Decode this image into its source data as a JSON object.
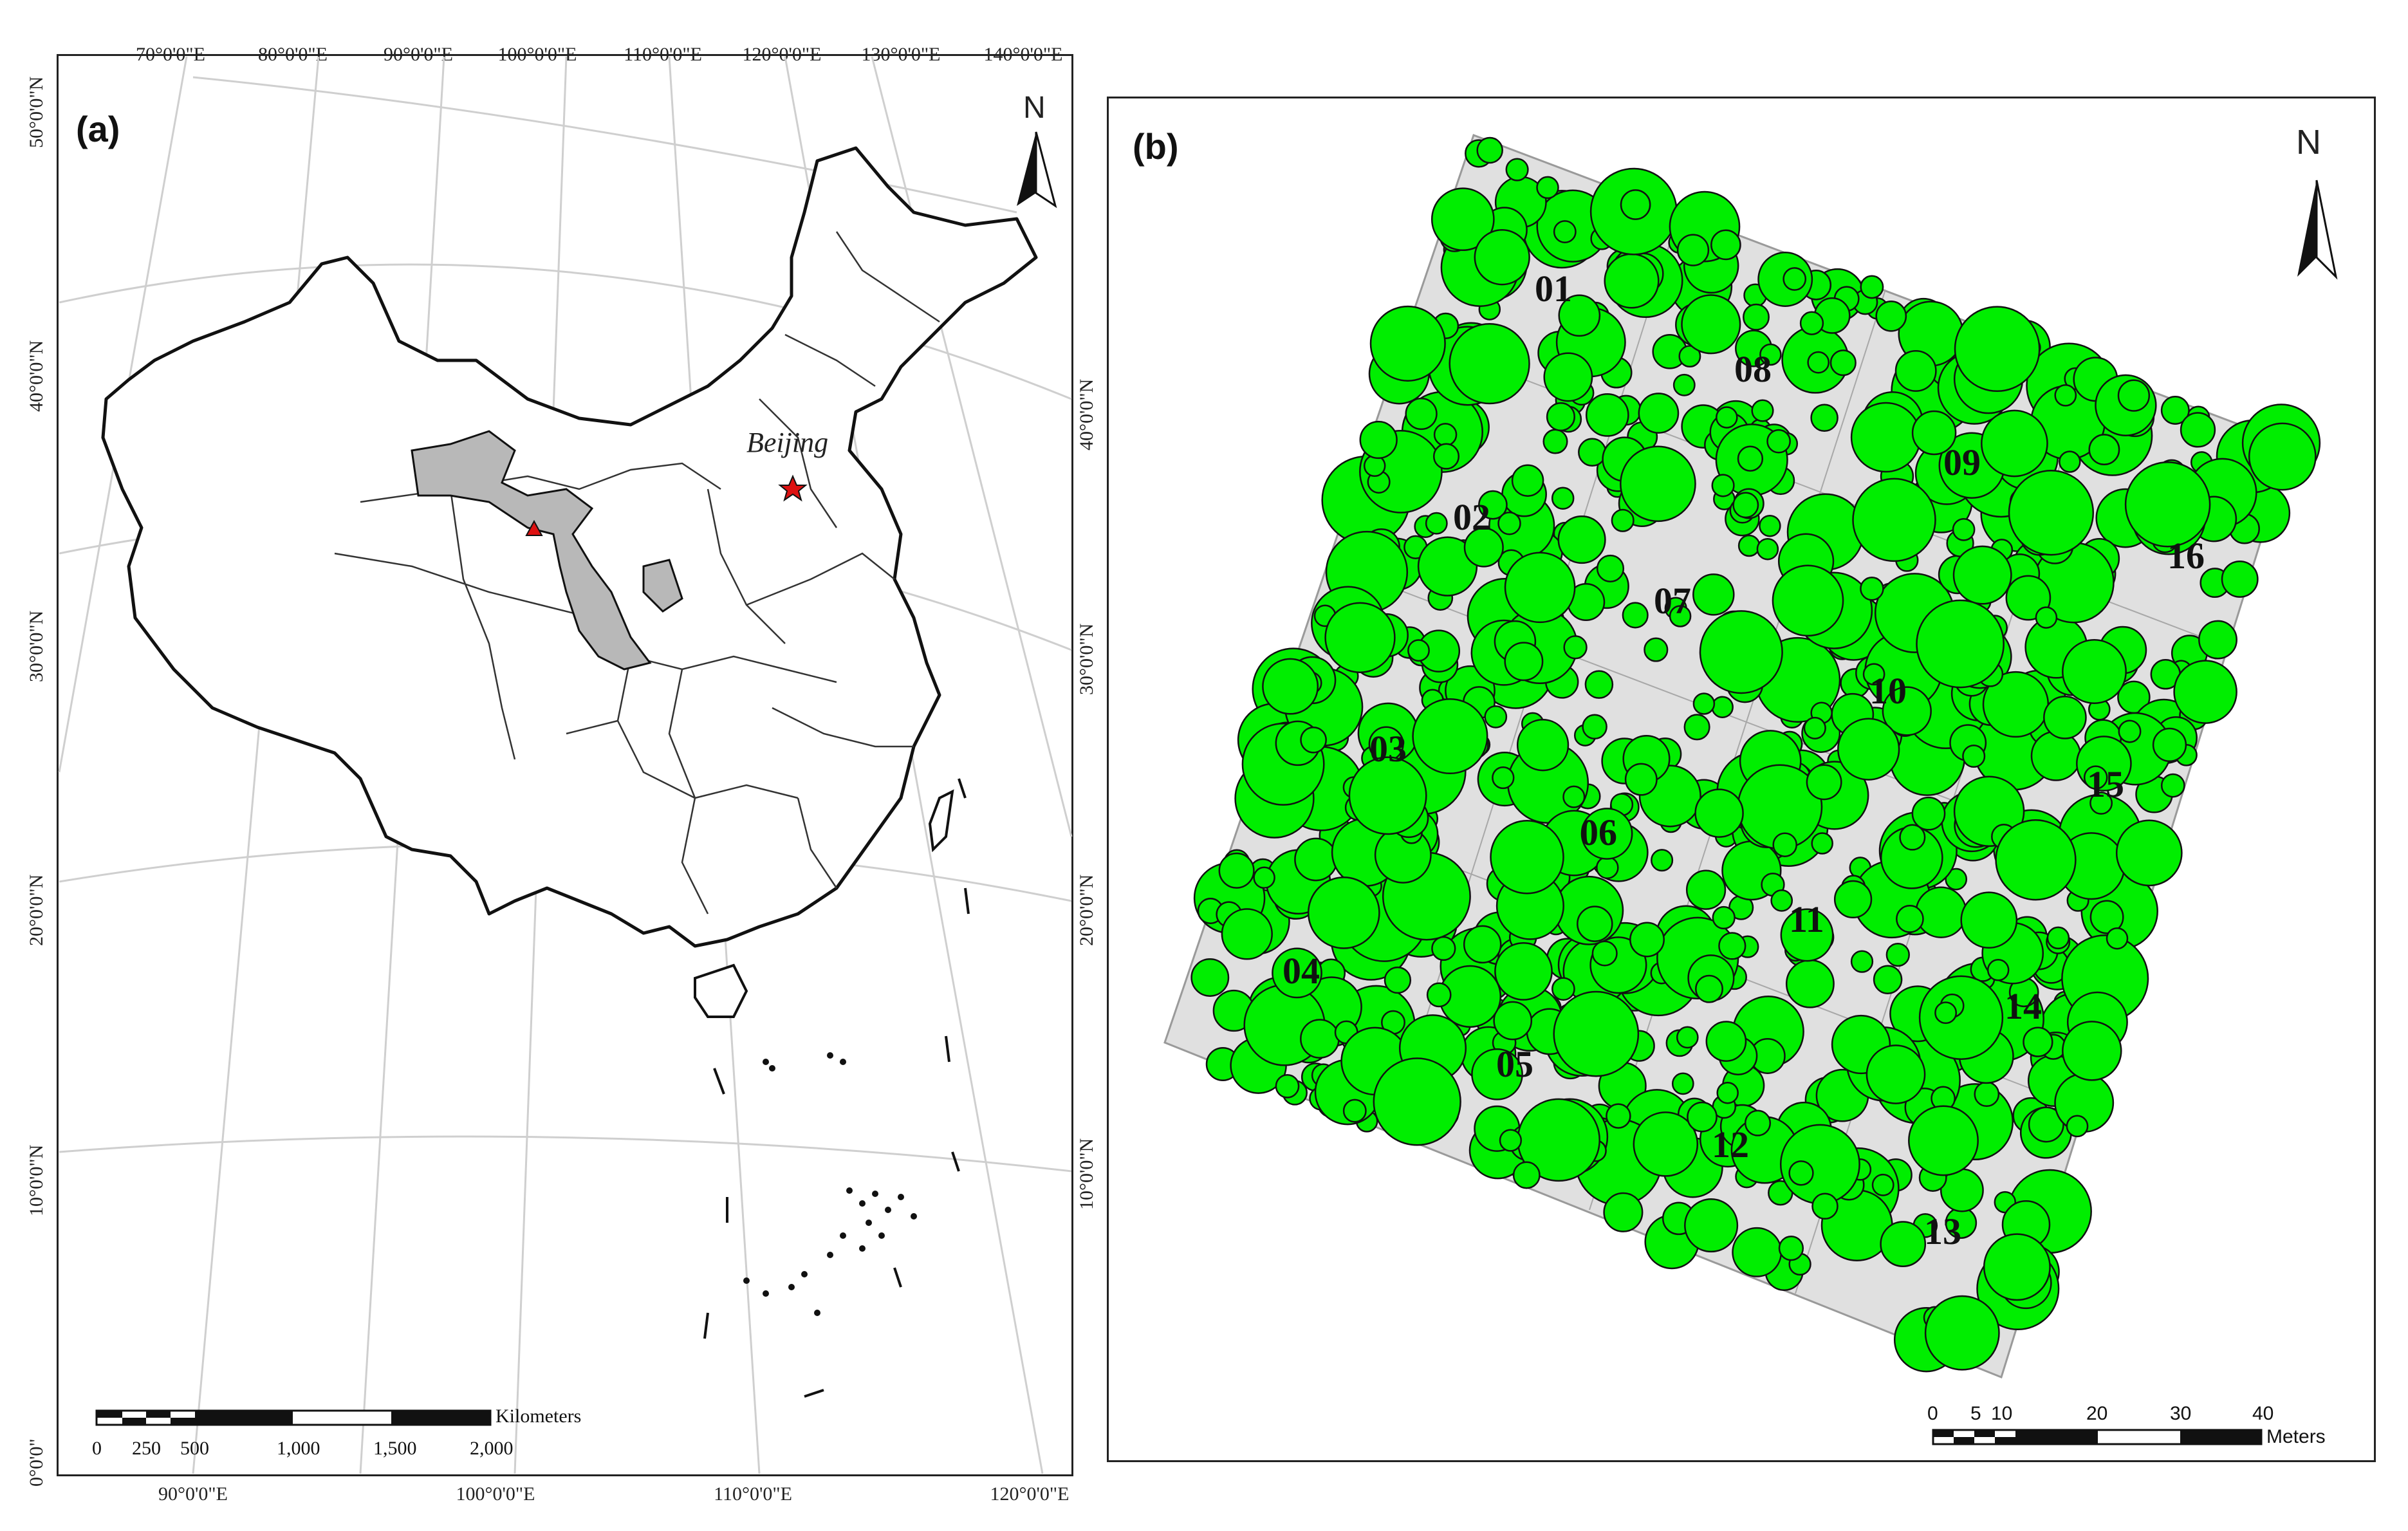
{
  "panel_a": {
    "label": "(a)",
    "north": "N",
    "city": "Beijing",
    "top_ticks": [
      "70°0'0\"E",
      "80°0'0\"E",
      "90°0'0\"E",
      "100°0'0\"E",
      "110°0'0\"E",
      "120°0'0\"E",
      "130°0'0\"E",
      "140°0'0\"E"
    ],
    "bottom_ticks": [
      "90°0'0\"E",
      "100°0'0\"E",
      "110°0'0\"E",
      "120°0'0\"E"
    ],
    "left_ticks": [
      "50°0'0\"N",
      "40°0'0\"N",
      "30°0'0\"N",
      "20°0'0\"N",
      "10°0'0\"N",
      "0°0'0\""
    ],
    "right_ticks": [
      "40°0'0\"N",
      "30°0'0\"N",
      "20°0'0\"N",
      "10°0'0\"N"
    ],
    "scale_unit": "Kilometers",
    "scale_labels": [
      "0",
      "250",
      "500",
      "1,000",
      "1,500",
      "2,000"
    ]
  },
  "panel_b": {
    "label": "(b)",
    "north": "N",
    "plot_numbers": [
      "01",
      "02",
      "03",
      "04",
      "05",
      "06",
      "07",
      "08",
      "09",
      "10",
      "11",
      "12",
      "13",
      "14",
      "15",
      "16"
    ],
    "scale_unit": "Meters",
    "scale_labels": [
      "0",
      "5",
      "10",
      "20",
      "30",
      "40"
    ]
  },
  "colors": {
    "tree_fill": "#00ee00",
    "plot_fill": "#e0e0e0",
    "province_highlight": "#b8b8b8",
    "site_marker": "#dd1111"
  }
}
